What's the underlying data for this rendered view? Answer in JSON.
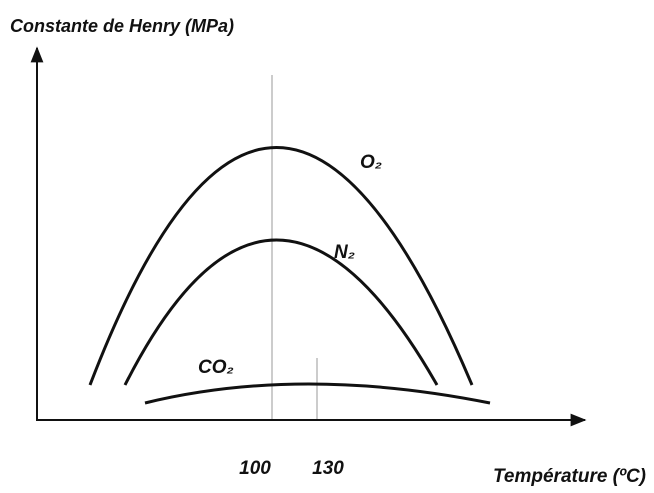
{
  "title": "Constante de Henry (MPa)",
  "x_axis_label": "Température (ºC)",
  "x_tick_labels": [
    "100",
    "130"
  ],
  "curves": [
    {
      "label": "O₂"
    },
    {
      "label": "N₂"
    },
    {
      "label": "CO₂"
    }
  ]
}
